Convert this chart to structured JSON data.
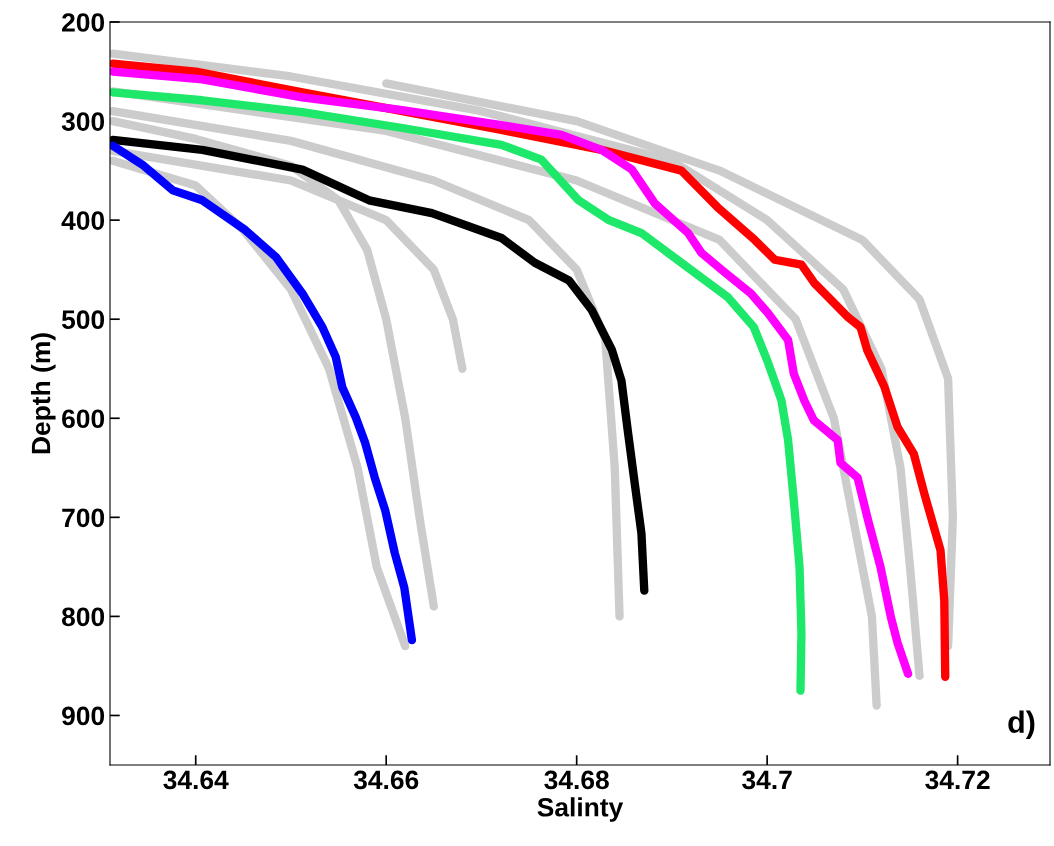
{
  "chart_data": {
    "type": "line",
    "xlabel": "Salinty",
    "ylabel": "Depth (m)",
    "annotations": [
      "d)"
    ],
    "xlim": [
      34.631,
      34.7297
    ],
    "xticks": [
      34.64,
      34.66,
      34.68,
      34.7,
      34.72
    ],
    "ylim": [
      950,
      200
    ],
    "yticks": [
      200,
      300,
      400,
      500,
      600,
      700,
      800,
      900
    ],
    "grid": false,
    "series": [
      {
        "color": "#cccccc",
        "x": [
          34.6313,
          34.64,
          34.65,
          34.655,
          34.658,
          34.66,
          34.662,
          34.6635,
          34.665
        ],
        "values": [
          300,
          318,
          345,
          380,
          430,
          500,
          600,
          700,
          790
        ]
      },
      {
        "color": "#cccccc",
        "x": [
          34.6313,
          34.64,
          34.645,
          34.65,
          34.654,
          34.657,
          34.659,
          34.662
        ],
        "values": [
          340,
          365,
          410,
          470,
          550,
          650,
          750,
          830
        ]
      },
      {
        "color": "#cccccc",
        "x": [
          34.6313,
          34.65,
          34.665,
          34.675,
          34.68,
          34.683,
          34.684,
          34.6845
        ],
        "values": [
          290,
          320,
          360,
          400,
          450,
          520,
          650,
          800
        ]
      },
      {
        "color": "#cccccc",
        "x": [
          34.6313,
          34.65,
          34.67,
          34.69,
          34.7,
          34.708,
          34.712,
          34.714,
          34.715,
          34.716
        ],
        "values": [
          232,
          255,
          290,
          340,
          400,
          470,
          550,
          650,
          750,
          860
        ]
      },
      {
        "color": "#cccccc",
        "x": [
          34.66,
          34.68,
          34.695,
          34.71,
          34.716,
          34.719,
          34.7195,
          34.719
        ],
        "values": [
          262,
          300,
          350,
          420,
          480,
          560,
          700,
          830
        ]
      },
      {
        "color": "#cccccc",
        "x": [
          34.6313,
          34.66,
          34.68,
          34.695,
          34.703,
          34.707,
          34.709,
          34.711,
          34.7115
        ],
        "values": [
          270,
          310,
          360,
          420,
          500,
          600,
          700,
          800,
          890
        ]
      },
      {
        "color": "#cccccc",
        "x": [
          34.6313,
          34.65,
          34.66,
          34.665,
          34.667,
          34.668
        ],
        "values": [
          330,
          360,
          400,
          450,
          500,
          550
        ]
      },
      {
        "color": "#ff0000",
        "x": [
          34.6313,
          34.64,
          34.6512,
          34.6617,
          34.6721,
          34.6826,
          34.691,
          34.6948,
          34.6987,
          34.7008,
          34.7036,
          34.705,
          34.7085,
          34.7098,
          34.7105,
          34.7123,
          34.7137,
          34.7154,
          34.7165,
          34.7182,
          34.7186,
          34.7187
        ],
        "values": [
          242,
          250,
          271,
          290,
          309,
          329,
          350,
          387,
          420,
          440,
          445,
          464,
          498,
          508,
          531,
          568,
          609,
          636,
          676,
          733,
          784,
          861
        ]
      },
      {
        "color": "#ff00ff",
        "x": [
          34.6313,
          34.6407,
          34.6512,
          34.6617,
          34.6721,
          34.6784,
          34.6826,
          34.6858,
          34.6882,
          34.6917,
          34.6931,
          34.6952,
          34.6983,
          34.7001,
          34.7022,
          34.7028,
          34.7039,
          34.7049,
          34.7074,
          34.7077,
          34.7095,
          34.7106,
          34.7119,
          34.713,
          34.7137,
          34.7148
        ],
        "values": [
          250,
          258,
          276,
          289,
          304,
          314,
          329,
          349,
          383,
          413,
          433,
          450,
          474,
          494,
          521,
          555,
          582,
          602,
          622,
          645,
          660,
          703,
          750,
          801,
          827,
          858
        ]
      },
      {
        "color": "#1ee86a",
        "x": [
          34.6313,
          34.6407,
          34.6512,
          34.6617,
          34.6721,
          34.6763,
          34.6802,
          34.6834,
          34.6868,
          34.6896,
          34.6931,
          34.6959,
          34.6986,
          34.7001,
          34.7015,
          34.7022,
          34.7028,
          34.7034,
          34.7036,
          34.7035
        ],
        "values": [
          271,
          279,
          291,
          307,
          324,
          339,
          380,
          400,
          413,
          433,
          458,
          478,
          508,
          544,
          582,
          622,
          683,
          750,
          817,
          875
        ]
      },
      {
        "color": "#000000",
        "x": [
          34.6313,
          34.6407,
          34.6512,
          34.6582,
          34.6648,
          34.6721,
          34.6756,
          34.6792,
          34.6816,
          34.6837,
          34.6847,
          34.6854,
          34.6861,
          34.6868,
          34.6871
        ],
        "values": [
          319,
          329,
          349,
          380,
          393,
          418,
          443,
          461,
          491,
          531,
          562,
          615,
          666,
          716,
          774
        ]
      },
      {
        "color": "#0000ff",
        "x": [
          34.6313,
          34.6344,
          34.6376,
          34.6407,
          34.6452,
          34.6484,
          34.6512,
          34.6533,
          34.6547,
          34.6554,
          34.6568,
          34.6578,
          34.6588,
          34.6599,
          34.6609,
          34.6619,
          34.6624,
          34.6627
        ],
        "values": [
          325,
          344,
          370,
          380,
          410,
          437,
          474,
          508,
          538,
          569,
          599,
          625,
          660,
          693,
          736,
          771,
          804,
          824
        ]
      }
    ]
  }
}
